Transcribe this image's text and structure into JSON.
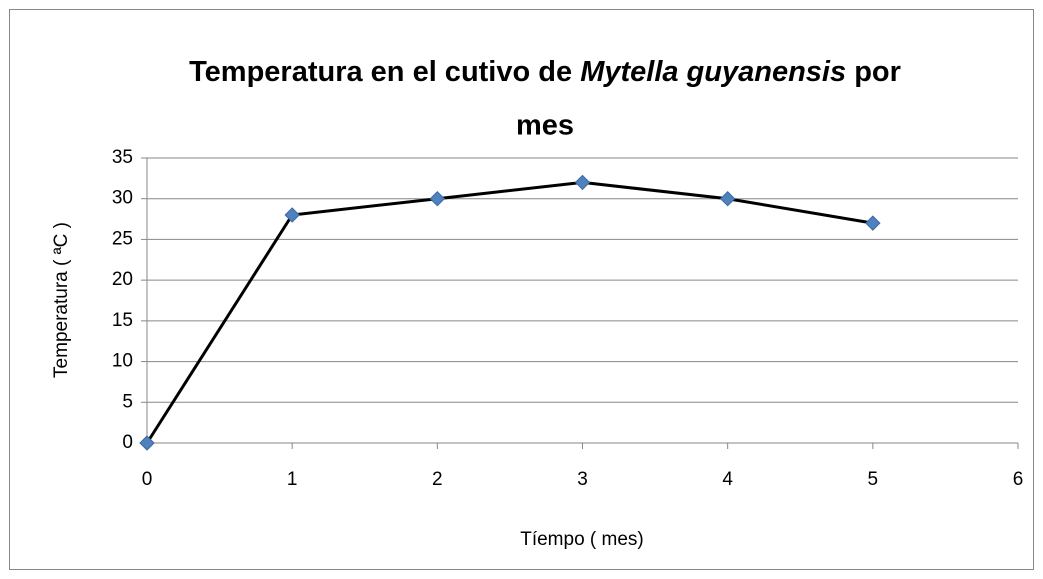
{
  "chart_data": {
    "type": "scatter-line",
    "title": [
      "Temperatura en el cutivo de",
      "Mytella guyanensis",
      "por",
      "mes"
    ],
    "x_label": "Tíempo ( mes)",
    "y_label": "Temperatura ( ªC )",
    "x": [
      0,
      1,
      2,
      3,
      4,
      5
    ],
    "values": [
      0,
      28,
      30,
      32,
      30,
      27
    ],
    "line_color": "#000000",
    "marker_color": "#4f81bd",
    "xlim": [
      0,
      6
    ],
    "xticks": [
      0,
      1,
      2,
      3,
      4,
      5,
      6
    ],
    "ylim": [
      0,
      35
    ],
    "yticks": [
      0,
      5,
      10,
      15,
      20,
      25,
      30,
      35
    ],
    "grid": true
  }
}
